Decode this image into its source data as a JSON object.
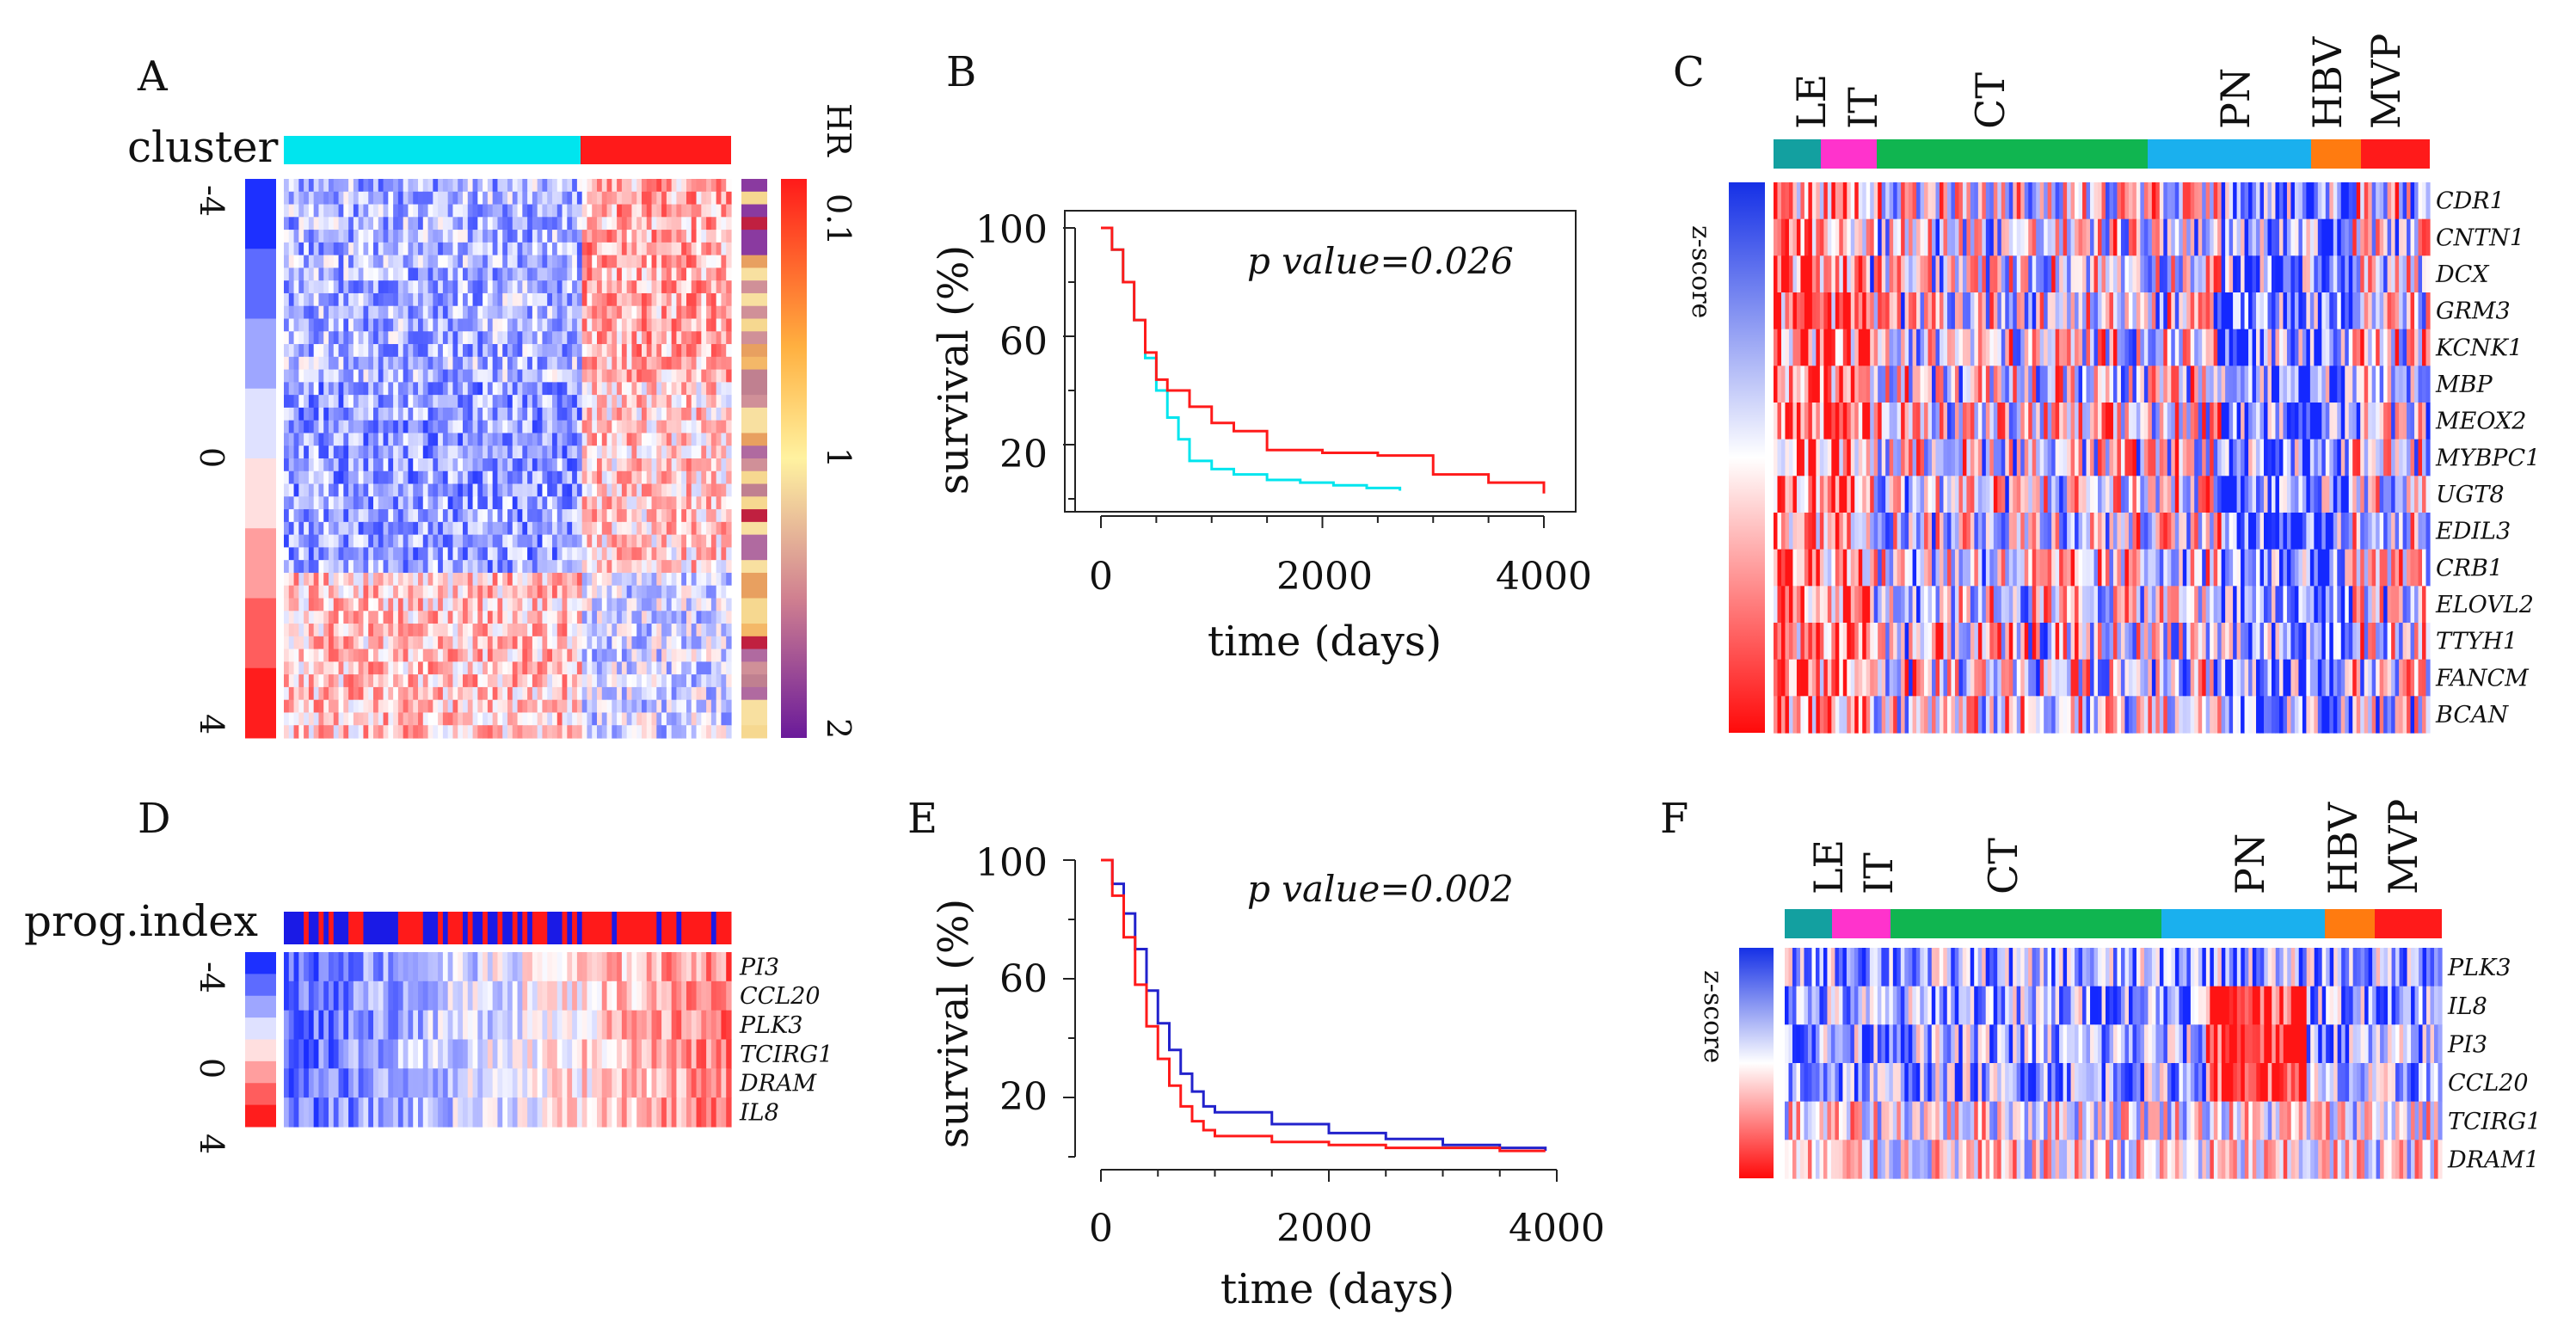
{
  "panels": {
    "A": {
      "letter": "A",
      "cluster_label": "cluster",
      "cluster_colors": [
        "#00e5ee",
        "#ff1a1a"
      ],
      "scale_ticks": [
        "-4",
        "0",
        "4"
      ],
      "hr_label": "HR",
      "hr_ticks": [
        "0.1",
        "1",
        "2"
      ]
    },
    "B": {
      "letter": "B",
      "pvalue": "p value=0.026",
      "xlabel": "time (days)",
      "ylabel": "survival (%)",
      "xticks": [
        "0",
        "2000",
        "4000"
      ],
      "yticks": [
        "100",
        "60",
        "20"
      ]
    },
    "C": {
      "letter": "C",
      "zscore_label": "z-score",
      "regions": [
        {
          "name": "LE",
          "color": "#13a0a0"
        },
        {
          "name": "IT",
          "color": "#ff33cc"
        },
        {
          "name": "CT",
          "color": "#10b550"
        },
        {
          "name": "PN",
          "color": "#1ab0ee"
        },
        {
          "name": "HBV",
          "color": "#ff7b10"
        },
        {
          "name": "MVP",
          "color": "#ff1a1a"
        }
      ],
      "genes": [
        "CDR1",
        "CNTN1",
        "DCX",
        "GRM3",
        "KCNK1",
        "MBP",
        "MEOX2",
        "MYBPC1",
        "UGT8",
        "EDIL3",
        "CRB1",
        "ELOVL2",
        "TTYH1",
        "FANCM",
        "BCAN"
      ]
    },
    "D": {
      "letter": "D",
      "prog_label": "prog.index",
      "scale_ticks": [
        "-4",
        "0",
        "4"
      ],
      "genes": [
        "PI3",
        "CCL20",
        "PLK3",
        "TCIRG1",
        "DRAM",
        "IL8"
      ]
    },
    "E": {
      "letter": "E",
      "pvalue": "p value=0.002",
      "xlabel": "time (days)",
      "ylabel": "survival (%)",
      "xticks": [
        "0",
        "2000",
        "4000"
      ],
      "yticks": [
        "100",
        "60",
        "20"
      ]
    },
    "F": {
      "letter": "F",
      "zscore_label": "z-score",
      "regions": [
        {
          "name": "LE",
          "color": "#13a0a0"
        },
        {
          "name": "IT",
          "color": "#ff33cc"
        },
        {
          "name": "CT",
          "color": "#10b550"
        },
        {
          "name": "PN",
          "color": "#1ab0ee"
        },
        {
          "name": "HBV",
          "color": "#ff7b10"
        },
        {
          "name": "MVP",
          "color": "#ff1a1a"
        }
      ],
      "genes": [
        "PLK3",
        "IL8",
        "PI3",
        "CCL20",
        "TCIRG1",
        "DRAM1"
      ]
    }
  },
  "chart_data": [
    {
      "panel": "B",
      "type": "line",
      "title": "",
      "xlabel": "time (days)",
      "ylabel": "survival (%)",
      "xlim": [
        0,
        4000
      ],
      "ylim": [
        0,
        100
      ],
      "annotation": "p value=0.026",
      "series": [
        {
          "name": "cyan cluster",
          "color": "#00e5ee",
          "x": [
            0,
            100,
            200,
            300,
            400,
            500,
            600,
            700,
            800,
            1000,
            1200,
            1500,
            1800,
            2100,
            2400,
            2700
          ],
          "y": [
            100,
            92,
            80,
            66,
            52,
            40,
            30,
            22,
            14,
            11,
            9,
            7,
            6,
            5,
            4,
            3
          ]
        },
        {
          "name": "red cluster",
          "color": "#ff1a1a",
          "x": [
            0,
            100,
            200,
            300,
            400,
            500,
            600,
            700,
            800,
            1000,
            1200,
            1500,
            2000,
            2500,
            3000,
            3500,
            4000
          ],
          "y": [
            100,
            92,
            80,
            66,
            54,
            44,
            40,
            40,
            34,
            28,
            25,
            18,
            17,
            16,
            9,
            6,
            2
          ]
        }
      ]
    },
    {
      "panel": "E",
      "type": "line",
      "title": "",
      "xlabel": "time (days)",
      "ylabel": "survival (%)",
      "xlim": [
        0,
        4000
      ],
      "ylim": [
        0,
        100
      ],
      "annotation": "p value=0.002",
      "series": [
        {
          "name": "blue group",
          "color": "#2222cc",
          "x": [
            0,
            100,
            200,
            300,
            400,
            500,
            600,
            700,
            800,
            900,
            1000,
            1500,
            2000,
            2500,
            3000,
            3500,
            3900
          ],
          "y": [
            100,
            92,
            82,
            70,
            56,
            45,
            36,
            28,
            22,
            17,
            15,
            11,
            8,
            6,
            4,
            3,
            2
          ]
        },
        {
          "name": "red group",
          "color": "#ff1a1a",
          "x": [
            0,
            100,
            200,
            300,
            400,
            500,
            600,
            700,
            800,
            900,
            1000,
            1500,
            2000,
            2500,
            3000,
            3500,
            3900
          ],
          "y": [
            100,
            88,
            74,
            58,
            44,
            33,
            24,
            17,
            12,
            9,
            7,
            5,
            4,
            3,
            3,
            2,
            2
          ]
        }
      ]
    },
    {
      "panel": "A",
      "type": "heatmap",
      "title": "",
      "cluster_label": "cluster",
      "color_scale": [
        -4,
        4
      ],
      "hr_scale": [
        "0.1",
        "1",
        "2"
      ],
      "clusters": [
        "cyan",
        "red"
      ]
    },
    {
      "panel": "C",
      "type": "heatmap",
      "regions": [
        "LE",
        "IT",
        "CT",
        "PN",
        "HBV",
        "MVP"
      ],
      "rows": [
        "CDR1",
        "CNTN1",
        "DCX",
        "GRM3",
        "KCNK1",
        "MBP",
        "MEOX2",
        "MYBPC1",
        "UGT8",
        "EDIL3",
        "CRB1",
        "ELOVL2",
        "TTYH1",
        "FANCM",
        "BCAN"
      ]
    },
    {
      "panel": "D",
      "type": "heatmap",
      "color_scale": [
        -4,
        4
      ],
      "rows": [
        "PI3",
        "CCL20",
        "PLK3",
        "TCIRG1",
        "DRAM",
        "IL8"
      ]
    },
    {
      "panel": "F",
      "type": "heatmap",
      "regions": [
        "LE",
        "IT",
        "CT",
        "PN",
        "HBV",
        "MVP"
      ],
      "rows": [
        "PLK3",
        "IL8",
        "PI3",
        "CCL20",
        "TCIRG1",
        "DRAM1"
      ]
    }
  ]
}
